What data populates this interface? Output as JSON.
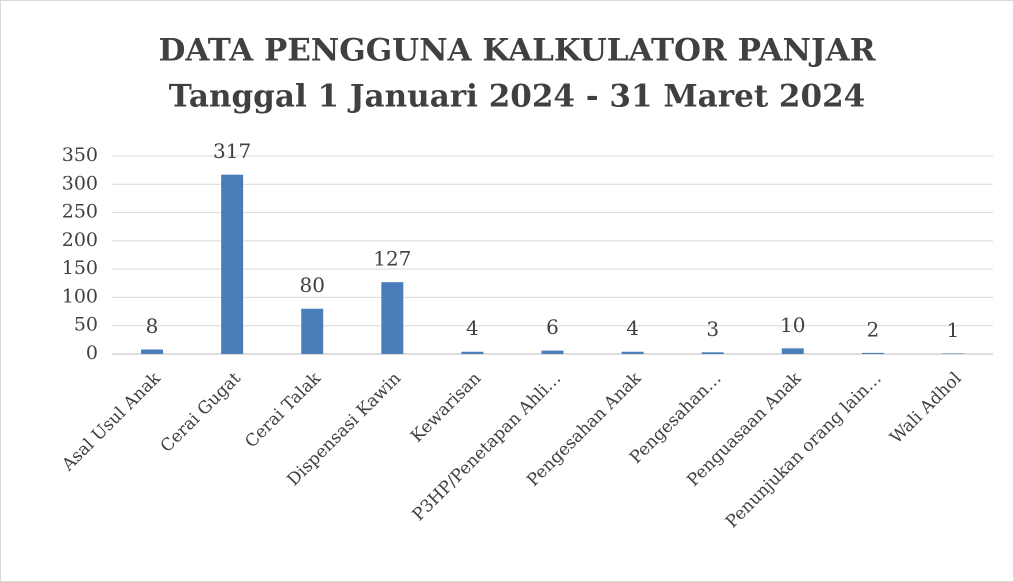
{
  "chart_data": {
    "type": "bar",
    "title": "DATA PENGGUNA KALKULATOR PANJAR",
    "subtitle": "Tanggal 1 Januari 2024 - 31 Maret 2024",
    "categories": [
      "Asal Usul Anak",
      "Cerai Gugat",
      "Cerai Talak",
      "Dispensasi Kawin",
      "Kewarisan",
      "P3HP/Penetapan Ahli…",
      "Pengesahan Anak",
      "Pengesahan…",
      "Penguasaan Anak",
      "Penunjukan orang lain…",
      "Wali Adhol"
    ],
    "values": [
      8,
      317,
      80,
      127,
      4,
      6,
      4,
      3,
      10,
      2,
      1
    ],
    "color": "#4a7ebb",
    "ylim": [
      0,
      350
    ],
    "yticks": [
      0,
      50,
      100,
      150,
      200,
      250,
      300,
      350
    ],
    "grid": true
  }
}
